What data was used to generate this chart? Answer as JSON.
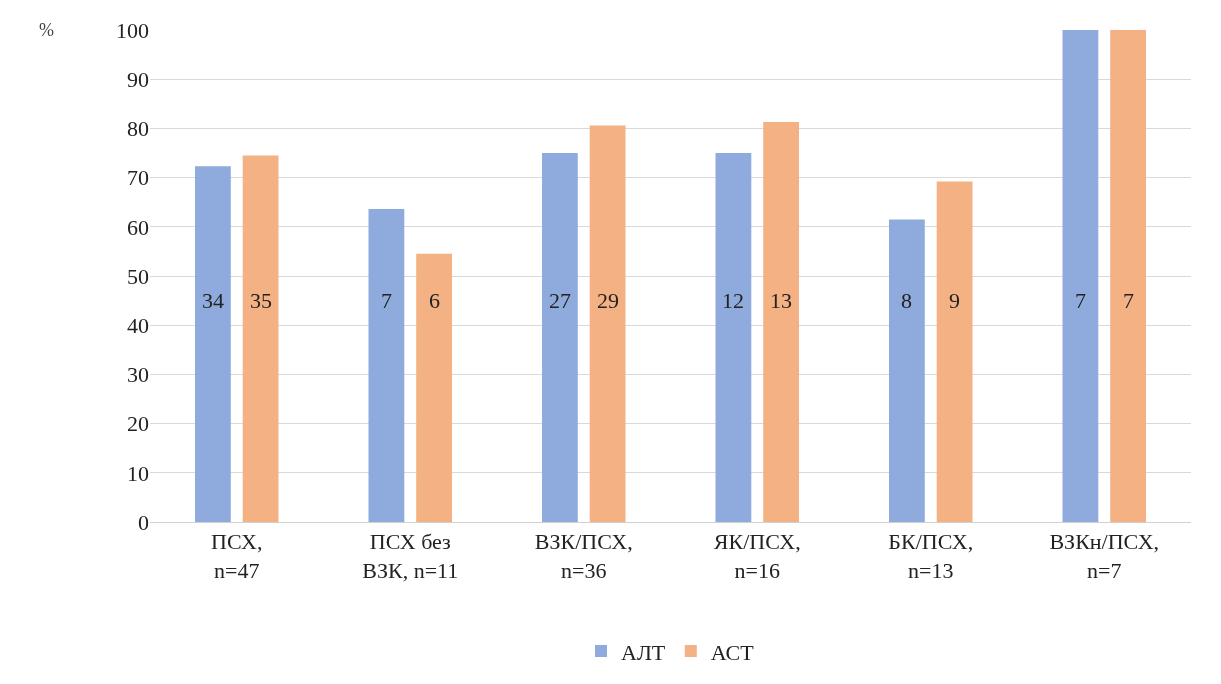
{
  "chart_data": {
    "type": "bar",
    "ylabel": "%",
    "categories": [
      "ПСХ,\nn=47",
      "ПСХ без\nВЗК, n=11",
      "ВЗК/ПСХ,\nn=36",
      "ЯК/ПСХ,\nn=16",
      "БК/ПСХ,\nn=13",
      "ВЗКн/ПСХ,\nn=7"
    ],
    "series": [
      {
        "name": "АЛТ",
        "color": "#8faadc",
        "values": [
          72.3,
          63.6,
          75.0,
          75.0,
          61.5,
          100
        ]
      },
      {
        "name": "АСТ",
        "color": "#f4b183",
        "values": [
          74.5,
          54.5,
          80.6,
          81.3,
          69.2,
          100
        ]
      }
    ],
    "annotations": [
      "34",
      "35",
      "7",
      "6",
      "27",
      "29",
      "12",
      "13",
      "8",
      "9",
      "7",
      "7"
    ],
    "ylim": [
      0,
      100
    ],
    "yticks": [
      0,
      10,
      20,
      30,
      40,
      50,
      60,
      70,
      80,
      90,
      100
    ],
    "grid": "y",
    "legend": "bottom"
  }
}
